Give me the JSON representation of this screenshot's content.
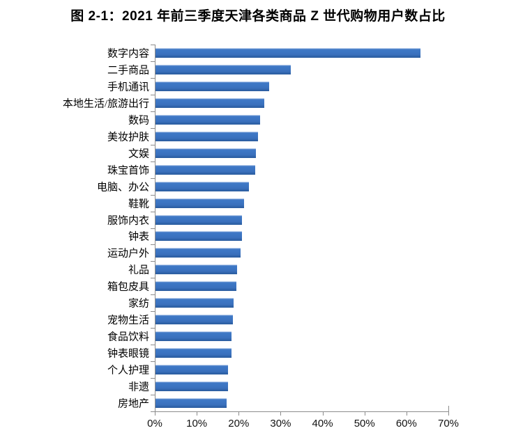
{
  "title": "图 2-1：2021 年前三季度天津各类商品 Z 世代购物用户数占比",
  "chart_data": {
    "type": "bar",
    "orientation": "horizontal",
    "title": "图 2-1：2021 年前三季度天津各类商品 Z 世代购物用户数占比",
    "categories": [
      "数字内容",
      "二手商品",
      "手机通讯",
      "本地生活/旅游出行",
      "数码",
      "美妆护肤",
      "文娱",
      "珠宝首饰",
      "电脑、办公",
      "鞋靴",
      "服饰内衣",
      "钟表",
      "运动户外",
      "礼品",
      "箱包皮具",
      "家纺",
      "宠物生活",
      "食品饮料",
      "钟表眼镜",
      "个人护理",
      "非遗",
      "房地产"
    ],
    "values": [
      63.2,
      32.3,
      27.1,
      26.0,
      25.0,
      24.5,
      24.0,
      23.8,
      22.3,
      21.1,
      20.7,
      20.6,
      20.3,
      19.5,
      19.3,
      18.7,
      18.5,
      18.2,
      18.1,
      17.3,
      17.3,
      17.0
    ],
    "value_unit": "%",
    "xlim": [
      0,
      70
    ],
    "x_tick_labels": [
      "0%",
      "10%",
      "20%",
      "30%",
      "40%",
      "50%",
      "60%",
      "70%"
    ],
    "xlabel": "",
    "ylabel": "",
    "grid": false,
    "legend": "none",
    "bar_color": "#3B73C2",
    "bar_gradient_top": "#A9C4E7",
    "bar_gradient_bottom": "#2B5C9E",
    "axis_color": "#8C8C8C",
    "text_color": "#000000",
    "background_color": "#FFFFFF"
  }
}
